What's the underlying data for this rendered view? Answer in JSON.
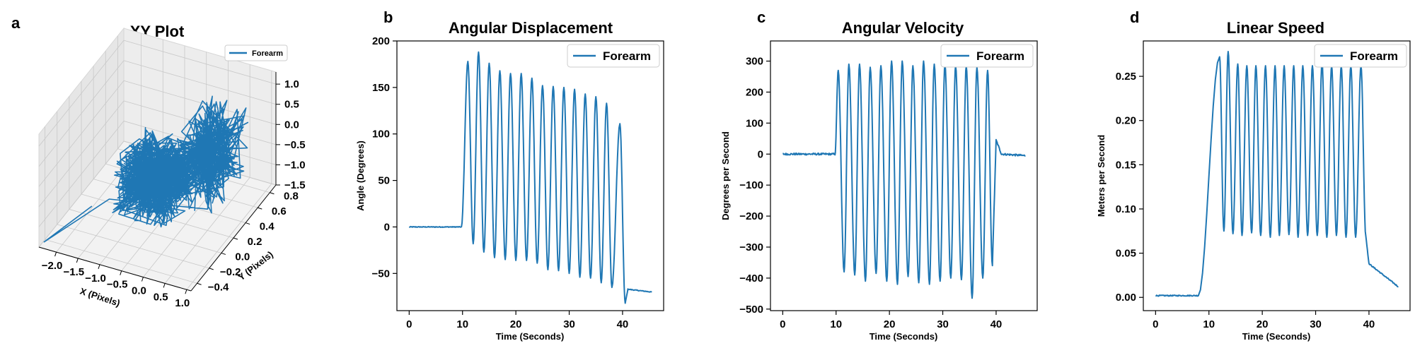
{
  "colors": {
    "series": "#1f77b4"
  },
  "chart_data": [
    {
      "letter": "a",
      "type": "line3d",
      "title": "XY Plot",
      "xlabel": "X (Pixels)",
      "ylabel": "Y (Pixels)",
      "zlabel": "",
      "xlim": [
        -2.4,
        1.1
      ],
      "ylim": [
        -0.5,
        0.9
      ],
      "zlim": [
        -1.5,
        1.3
      ],
      "xticks": [
        -2.0,
        -1.5,
        -1.0,
        -0.5,
        0.0,
        0.5,
        1.0
      ],
      "yticks": [
        -0.4,
        -0.2,
        0.0,
        0.2,
        0.4,
        0.6,
        0.8
      ],
      "zticks": [
        -1.5,
        -1.0,
        -0.5,
        0.0,
        0.5,
        1.0
      ],
      "xtick_labels": [
        "−2.0",
        "−1.5",
        "−1.0",
        "−0.5",
        "0.0",
        "0.5",
        "1.0"
      ],
      "ytick_labels": [
        "−0.4",
        "−0.2",
        "0.0",
        "0.2",
        "0.4",
        "0.6",
        "0.8"
      ],
      "ztick_labels": [
        "−1.5",
        "−1.0",
        "−0.5",
        "0.0",
        "0.5",
        "1.0"
      ],
      "legend": {
        "entries": [
          "Forearm"
        ],
        "position": "top-right"
      },
      "series": [
        {
          "name": "Forearm"
        }
      ]
    },
    {
      "letter": "b",
      "type": "line",
      "title": "Angular Displacement",
      "xlabel": "Time (Seconds)",
      "ylabel": "Angle (Degrees)",
      "xlim": [
        -2.3,
        47.7
      ],
      "ylim": [
        -90,
        200
      ],
      "xticks": [
        0,
        10,
        20,
        30,
        40
      ],
      "yticks": [
        -50,
        0,
        50,
        100,
        150,
        200
      ],
      "xtick_labels": [
        "0",
        "10",
        "20",
        "30",
        "40"
      ],
      "ytick_labels": [
        "−50",
        "0",
        "50",
        "100",
        "150",
        "200"
      ],
      "legend": {
        "entries": [
          "Forearm"
        ],
        "position": "top-right"
      },
      "series": [
        {
          "name": "Forearm",
          "baseline_before": [
            0,
            9.8,
            0
          ],
          "peaks": [
            [
              11.0,
              178
            ],
            [
              13.0,
              188
            ],
            [
              15.0,
              176
            ],
            [
              17.0,
              168
            ],
            [
              19.0,
              165
            ],
            [
              21.0,
              165
            ],
            [
              23.0,
              160
            ],
            [
              25.0,
              152
            ],
            [
              27.0,
              151
            ],
            [
              29.0,
              150
            ],
            [
              31.0,
              148
            ],
            [
              33.0,
              143
            ],
            [
              35.0,
              140
            ],
            [
              37.0,
              133
            ],
            [
              39.5,
              111
            ]
          ],
          "troughs": [
            [
              12.0,
              -18
            ],
            [
              14.0,
              -27
            ],
            [
              16.0,
              -33
            ],
            [
              18.0,
              -35
            ],
            [
              20.0,
              -36
            ],
            [
              22.0,
              -36
            ],
            [
              24.0,
              -39
            ],
            [
              26.0,
              -46
            ],
            [
              28.0,
              -47
            ],
            [
              30.0,
              -50
            ],
            [
              32.0,
              -54
            ],
            [
              34.0,
              -55
            ],
            [
              36.0,
              -60
            ],
            [
              38.0,
              -65
            ],
            [
              40.5,
              -82
            ]
          ],
          "tail": [
            [
              41.0,
              -67
            ],
            [
              45.5,
              -70
            ]
          ]
        }
      ]
    },
    {
      "letter": "c",
      "type": "line",
      "title": "Angular Velocity",
      "xlabel": "Time (Seconds)",
      "ylabel": "Degrees per Second",
      "xlim": [
        -2.3,
        47.7
      ],
      "ylim": [
        -505,
        365
      ],
      "xticks": [
        0,
        10,
        20,
        30,
        40
      ],
      "yticks": [
        -500,
        -400,
        -300,
        -200,
        -100,
        0,
        100,
        200,
        300
      ],
      "xtick_labels": [
        "0",
        "10",
        "20",
        "30",
        "40"
      ],
      "ytick_labels": [
        "−500",
        "−400",
        "−300",
        "−200",
        "−100",
        "0",
        "100",
        "200",
        "300"
      ],
      "legend": {
        "entries": [
          "Forearm"
        ],
        "position": "top-right"
      },
      "series": [
        {
          "name": "Forearm",
          "baseline_before": [
            0,
            9.8,
            0
          ],
          "peaks": [
            [
              10.4,
              270
            ],
            [
              12.4,
              290
            ],
            [
              14.4,
              290
            ],
            [
              16.4,
              280
            ],
            [
              18.4,
              285
            ],
            [
              20.4,
              300
            ],
            [
              22.4,
              300
            ],
            [
              24.4,
              285
            ],
            [
              26.4,
              300
            ],
            [
              28.4,
              290
            ],
            [
              30.4,
              290
            ],
            [
              32.4,
              285
            ],
            [
              34.4,
              285
            ],
            [
              36.4,
              280
            ],
            [
              38.4,
              270
            ]
          ],
          "troughs": [
            [
              11.5,
              -380
            ],
            [
              13.5,
              -390
            ],
            [
              15.5,
              -410
            ],
            [
              17.5,
              -385
            ],
            [
              19.5,
              -410
            ],
            [
              21.5,
              -420
            ],
            [
              23.5,
              -395
            ],
            [
              25.5,
              -415
            ],
            [
              27.5,
              -420
            ],
            [
              29.5,
              -410
            ],
            [
              31.5,
              -400
            ],
            [
              33.5,
              -405
            ],
            [
              35.5,
              -465
            ],
            [
              37.5,
              -400
            ],
            [
              39.3,
              -360
            ]
          ],
          "tail": [
            [
              40.0,
              45
            ],
            [
              41.0,
              0
            ],
            [
              45.5,
              -5
            ]
          ]
        }
      ]
    },
    {
      "letter": "d",
      "type": "line",
      "title": "Linear Speed",
      "xlabel": "Time (Seconds)",
      "ylabel": "Meters per Second",
      "xlim": [
        -2.3,
        47.7
      ],
      "ylim": [
        -0.015,
        0.29
      ],
      "xticks": [
        0,
        10,
        20,
        30,
        40
      ],
      "yticks": [
        0.0,
        0.05,
        0.1,
        0.15,
        0.2,
        0.25
      ],
      "xtick_labels": [
        "0",
        "10",
        "20",
        "30",
        "40"
      ],
      "ytick_labels": [
        "0.00",
        "0.05",
        "0.10",
        "0.15",
        "0.20",
        "0.25"
      ],
      "legend": {
        "entries": [
          "Forearm"
        ],
        "position": "top-right"
      },
      "series": [
        {
          "name": "Forearm",
          "baseline_before": [
            0,
            8.0,
            0.002
          ],
          "peaks": [
            [
              12.0,
              0.272
            ],
            [
              13.6,
              0.278
            ],
            [
              15.4,
              0.264
            ],
            [
              17.1,
              0.262
            ],
            [
              18.8,
              0.262
            ],
            [
              20.6,
              0.262
            ],
            [
              22.4,
              0.262
            ],
            [
              24.1,
              0.262
            ],
            [
              25.9,
              0.262
            ],
            [
              27.6,
              0.262
            ],
            [
              29.4,
              0.262
            ],
            [
              31.2,
              0.265
            ],
            [
              33.0,
              0.262
            ],
            [
              34.8,
              0.262
            ],
            [
              36.6,
              0.262
            ],
            [
              38.5,
              0.262
            ]
          ],
          "troughs": [
            [
              12.8,
              0.075
            ],
            [
              14.5,
              0.072
            ],
            [
              16.2,
              0.07
            ],
            [
              18.0,
              0.073
            ],
            [
              19.7,
              0.07
            ],
            [
              21.5,
              0.068
            ],
            [
              23.2,
              0.07
            ],
            [
              25.0,
              0.071
            ],
            [
              26.7,
              0.068
            ],
            [
              28.5,
              0.07
            ],
            [
              30.3,
              0.07
            ],
            [
              32.1,
              0.068
            ],
            [
              33.9,
              0.07
            ],
            [
              35.7,
              0.068
            ],
            [
              37.5,
              0.068
            ],
            [
              39.4,
              0.07
            ]
          ],
          "tail": [
            [
              40.0,
              0.038
            ],
            [
              45.5,
              0.012
            ]
          ]
        }
      ]
    }
  ]
}
